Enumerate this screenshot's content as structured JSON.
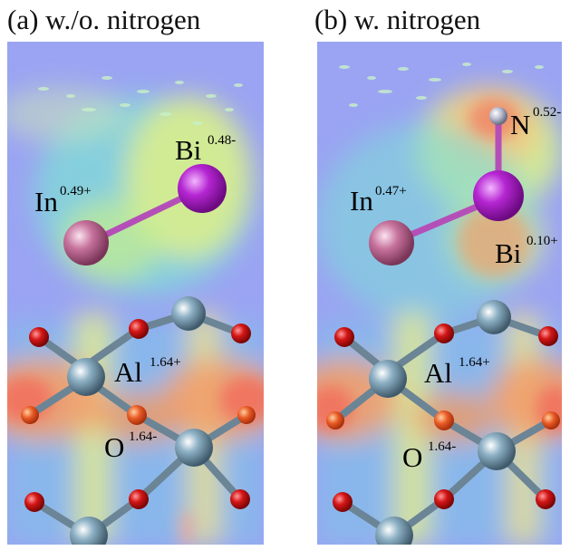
{
  "panels": [
    {
      "title": "(a)  w./o. nitrogen",
      "labels": [
        {
          "el": "In",
          "charge": "0.49+"
        },
        {
          "el": "Bi",
          "charge": "0.48-"
        },
        {
          "el": "Al",
          "charge": "1.64+"
        },
        {
          "el": "O",
          "charge": "1.64-"
        }
      ]
    },
    {
      "title": "(b)   w. nitrogen",
      "labels": [
        {
          "el": "N",
          "charge": "0.52-"
        },
        {
          "el": "In",
          "charge": "0.47+"
        },
        {
          "el": "Bi",
          "charge": "0.10+"
        },
        {
          "el": "Al",
          "charge": "1.64+"
        },
        {
          "el": "O",
          "charge": "1.64-"
        }
      ]
    }
  ],
  "colors": {
    "background_field": "#9aa4f2",
    "bi": "#b526d2",
    "in": "#c6729c",
    "al": "#7f9fb2",
    "o": "#d41616",
    "n": "#b8bccd"
  }
}
